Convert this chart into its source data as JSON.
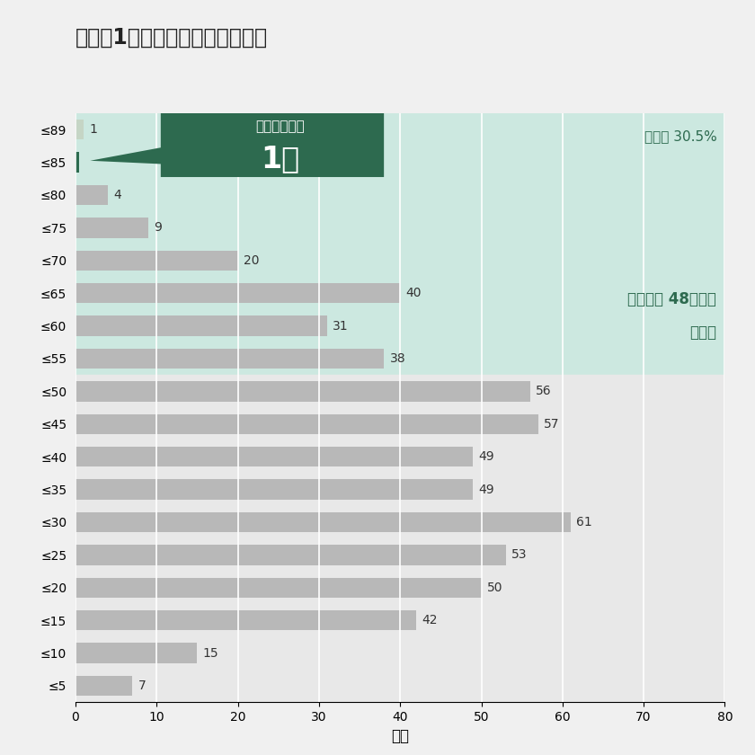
{
  "title": "タイプ1「特色ある教育の展開」",
  "categories": [
    "≤89",
    "≤85",
    "≤80",
    "≤75",
    "≤70",
    "≤65",
    "≤60",
    "≤55",
    "≤50",
    "≤45",
    "≤40",
    "≤35",
    "≤30",
    "≤25",
    "≤20",
    "≤15",
    "≤10",
    "≤5"
  ],
  "values": [
    1,
    0.4,
    4,
    9,
    20,
    40,
    31,
    38,
    56,
    57,
    49,
    49,
    61,
    53,
    50,
    42,
    15,
    7
  ],
  "display_values": [
    1,
    null,
    4,
    9,
    20,
    40,
    31,
    38,
    56,
    57,
    49,
    49,
    61,
    53,
    50,
    42,
    15,
    7
  ],
  "bar_color_normal": "#b8b8b8",
  "bar_color_89": "#c5d5c5",
  "bar_color_85": "#2d6a4f",
  "bg_color_upper": "#cce8e0",
  "bg_color_lower": "#e8e8e8",
  "xlabel": "校数",
  "xlim": [
    0,
    80
  ],
  "annotation_box_color": "#2d6a4f",
  "annotation_text1": "苗浦工大のみ",
  "annotation_text2": "1校",
  "selection_rate_text": "選定率 30.5%",
  "criteria_text1": "選定基準 48点以上",
  "criteria_text2": "个選定",
  "text_color_dark": "#2d6a4f",
  "text_color_light": "#ffffff",
  "title_fontsize": 17,
  "tick_fontsize": 10,
  "bar_label_fontsize": 10,
  "annotation_fontsize1": 11,
  "annotation_fontsize2": 24
}
